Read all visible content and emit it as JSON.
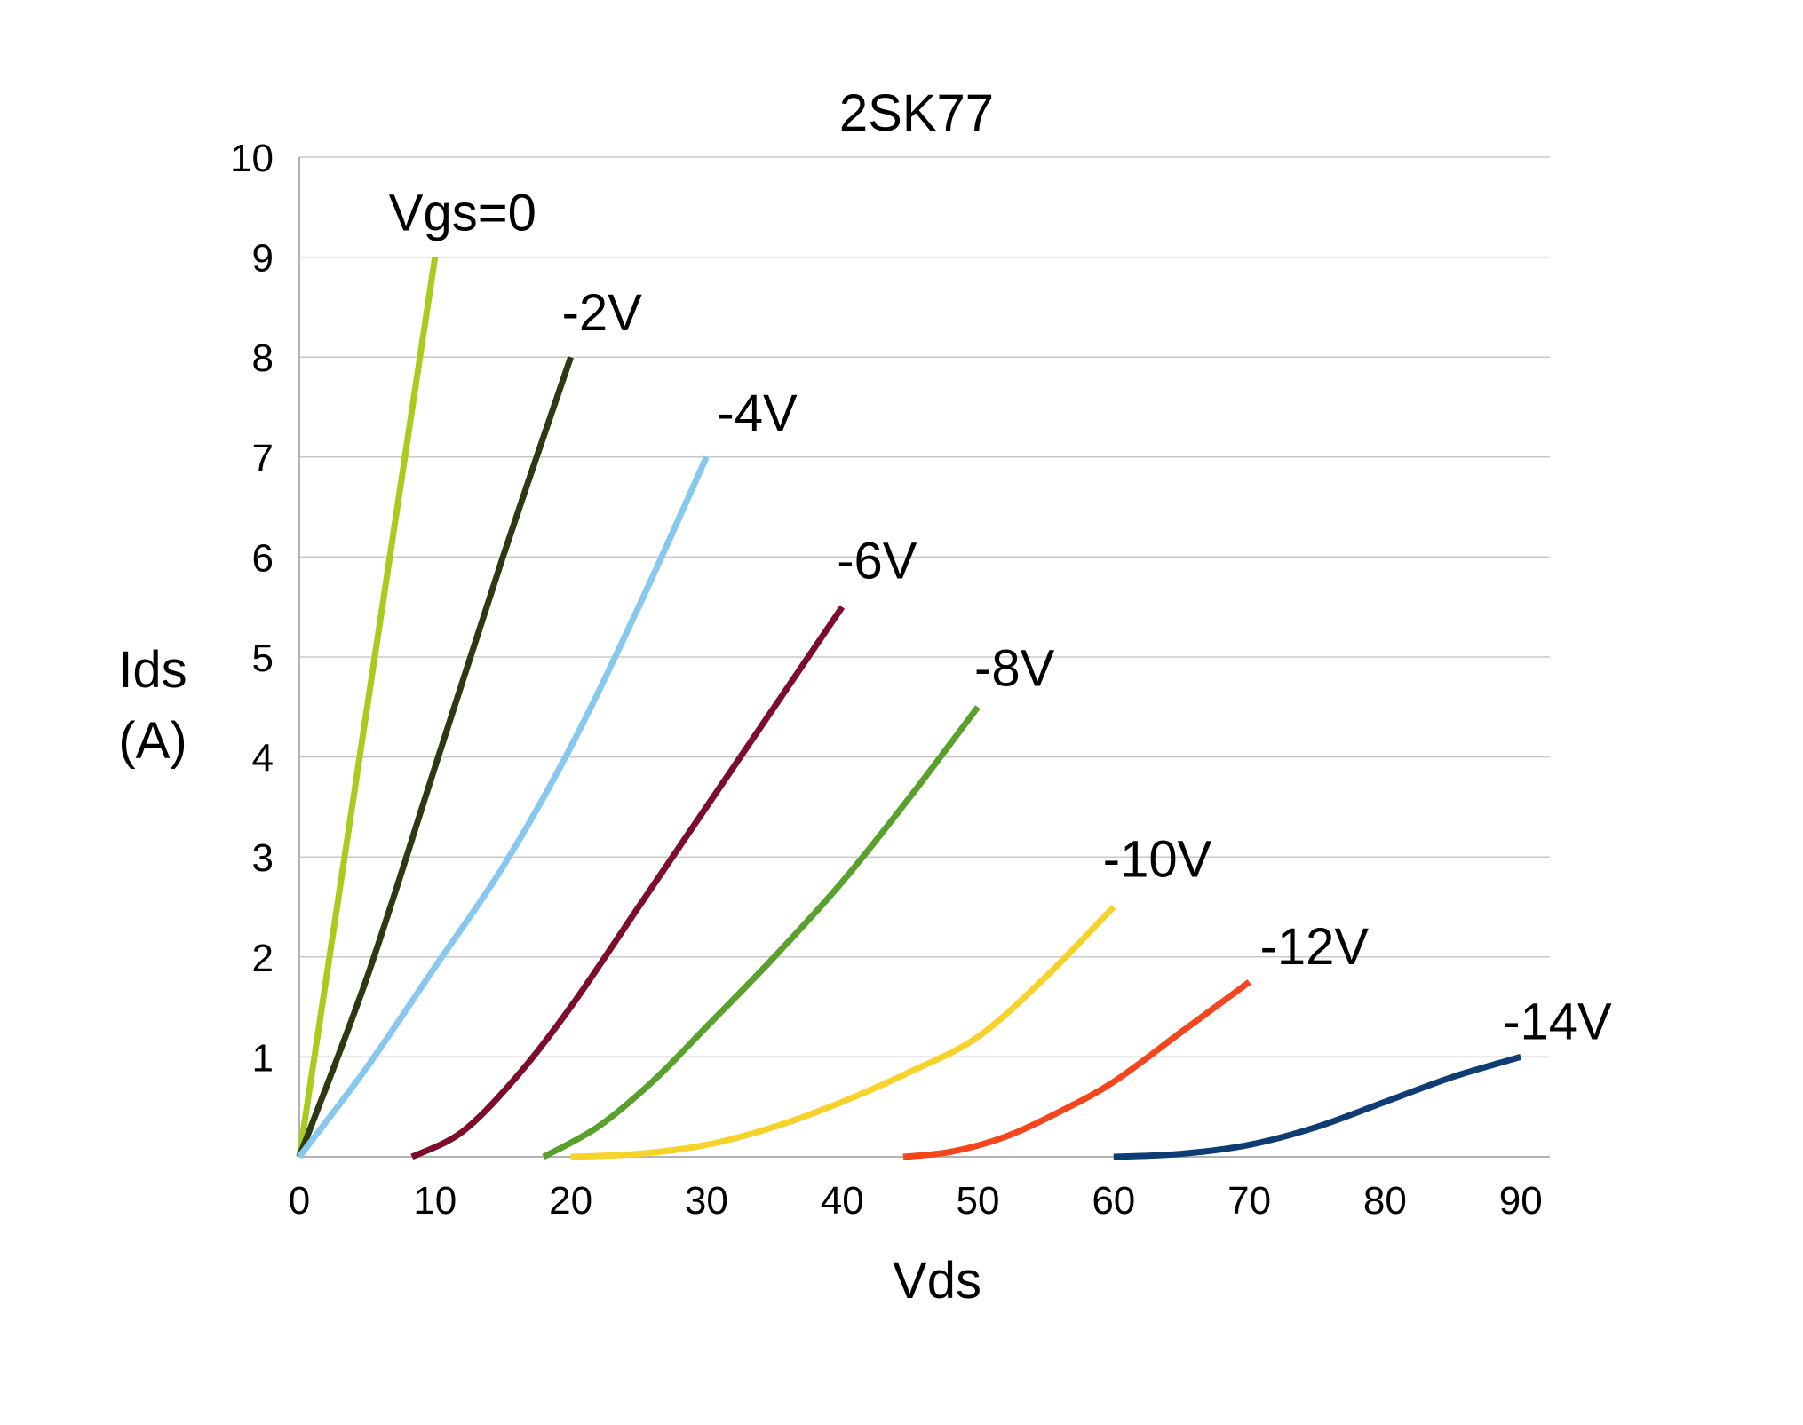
{
  "chart_data": {
    "type": "line",
    "title": "2SK77",
    "xlabel": "Vds",
    "ylabel_lines": [
      "Ids",
      "(A)"
    ],
    "xlim": [
      0,
      92
    ],
    "ylim": [
      0,
      10
    ],
    "xticks": [
      "0",
      "10",
      "20",
      "30",
      "40",
      "50",
      "60",
      "70",
      "80",
      "90"
    ],
    "xtick_values": [
      0,
      10,
      20,
      30,
      40,
      50,
      60,
      70,
      80,
      90
    ],
    "yticks": [
      "1",
      "2",
      "3",
      "4",
      "5",
      "6",
      "7",
      "8",
      "9",
      "10"
    ],
    "ytick_values": [
      1,
      2,
      3,
      4,
      5,
      6,
      7,
      8,
      9,
      10
    ],
    "grid": true,
    "legend": "none",
    "series": [
      {
        "name": "Vgs=0",
        "color": "#a8cc1c",
        "x": [
          0,
          10
        ],
        "y": [
          0,
          9
        ]
      },
      {
        "name": "-2V",
        "color": "#2b3a12",
        "x": [
          0,
          5,
          10,
          15,
          20
        ],
        "y": [
          0,
          1.8,
          3.9,
          6.0,
          8.0
        ]
      },
      {
        "name": "-4V",
        "color": "#87c8f0",
        "x": [
          0,
          5,
          10,
          15,
          20,
          25,
          30
        ],
        "y": [
          0,
          0.9,
          1.9,
          2.9,
          4.1,
          5.5,
          7.0
        ]
      },
      {
        "name": "-6V",
        "color": "#7d0d2a",
        "x": [
          8.3,
          12,
          16,
          20,
          25,
          30,
          35,
          40
        ],
        "y": [
          0,
          0.25,
          0.8,
          1.5,
          2.5,
          3.5,
          4.5,
          5.5
        ]
      },
      {
        "name": "-8V",
        "color": "#5aa02c",
        "x": [
          18,
          22,
          26,
          30,
          35,
          40,
          45,
          50
        ],
        "y": [
          0,
          0.3,
          0.75,
          1.3,
          2.0,
          2.75,
          3.6,
          4.5
        ]
      },
      {
        "name": "-10V",
        "color": "#f5d32a",
        "x": [
          20,
          25,
          30,
          35,
          40,
          45,
          50,
          55,
          60
        ],
        "y": [
          0,
          0.03,
          0.12,
          0.3,
          0.55,
          0.85,
          1.2,
          1.8,
          2.5
        ]
      },
      {
        "name": "-12V",
        "color": "#f5451c",
        "x": [
          44.5,
          48,
          52,
          56,
          60,
          65,
          70
        ],
        "y": [
          0,
          0.05,
          0.2,
          0.45,
          0.75,
          1.25,
          1.75
        ]
      },
      {
        "name": "-14V",
        "color": "#0f3d73",
        "x": [
          60,
          65,
          70,
          75,
          80,
          85,
          90
        ],
        "y": [
          0,
          0.03,
          0.12,
          0.3,
          0.55,
          0.8,
          1.0
        ]
      }
    ]
  }
}
